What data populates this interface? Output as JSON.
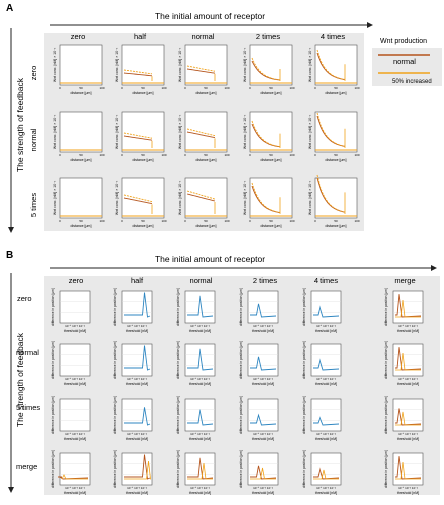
{
  "figure": {
    "panelA": {
      "label": "A",
      "top_axis": "The initial amount of receptor",
      "left_axis": "The strength of feedback",
      "columns": [
        "zero",
        "half",
        "normal",
        "2 times",
        "4 times"
      ],
      "rows": [
        "zero",
        "normal",
        "5 times"
      ],
      "ylabel_small": "Wnt conc. [nM] × 10⁻³",
      "xlabel_small": "distance [μm]",
      "tick_0": "0",
      "tick_mid": "50",
      "tick_end": "100",
      "legend": {
        "title": "Wnt production",
        "items": [
          {
            "label": "normal",
            "color": "#b5541c"
          },
          {
            "label": "50% increased",
            "color": "#f0a21a"
          }
        ]
      }
    },
    "panelB": {
      "label": "B",
      "top_axis": "The initial amount of receptor",
      "left_axis": "The strength of feedback",
      "columns": [
        "zero",
        "half",
        "normal",
        "2 times",
        "4 times",
        "merge"
      ],
      "rows": [
        "zero",
        "normal",
        "5 times",
        "merge"
      ],
      "ylabel_small": "difference in position [μm]",
      "xlabel_small": "threshold [nM]",
      "xticks": "10⁻⁴ 10⁻³ 10⁻²"
    }
  }
}
